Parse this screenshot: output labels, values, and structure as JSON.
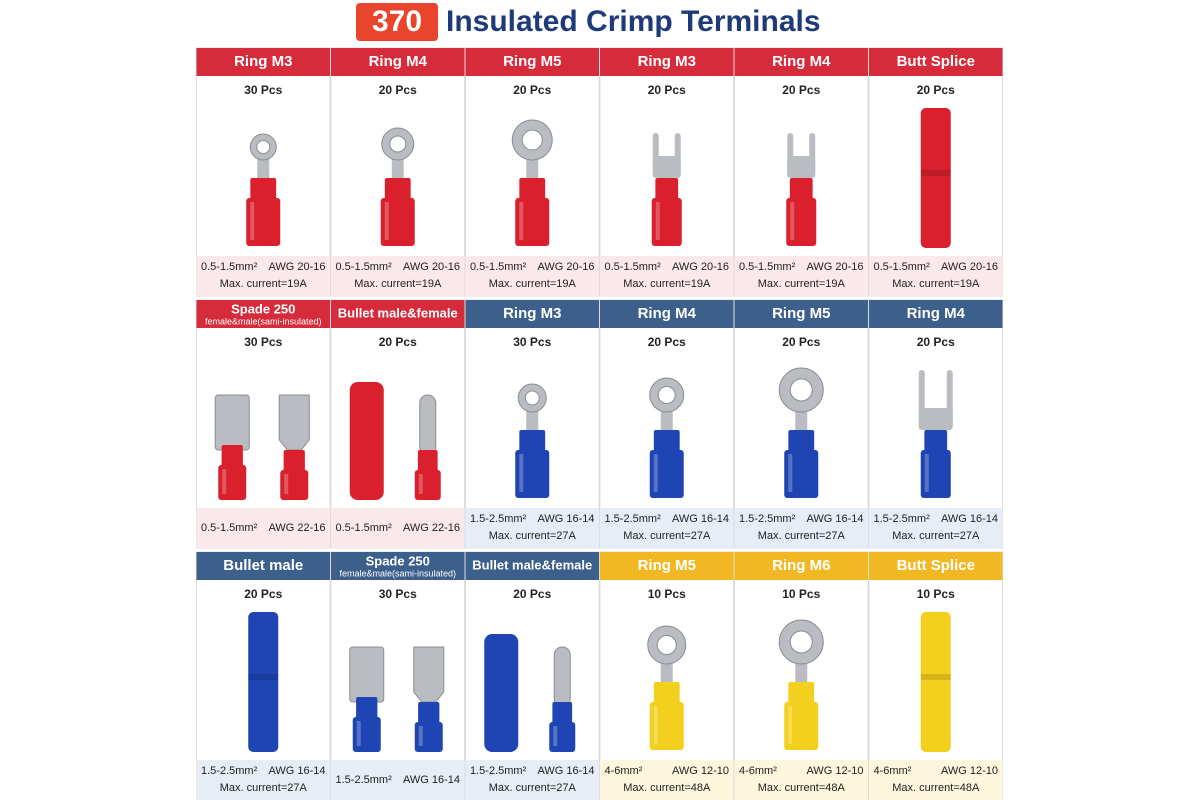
{
  "title": {
    "number": "370",
    "text": "Insulated Crimp Terminals"
  },
  "cells": [
    {
      "header": "Ring M3",
      "color": "#d62b3a",
      "count": "30 Pcs",
      "size": "0.5-1.5mm²",
      "awg": "AWG 20-16",
      "current": "Max. current=19A"
    },
    {
      "header": "Ring M4",
      "color": "#d62b3a",
      "count": "20 Pcs",
      "size": "0.5-1.5mm²",
      "awg": "AWG 20-16",
      "current": "Max. current=19A"
    },
    {
      "header": "Ring M5",
      "color": "#d62b3a",
      "count": "20 Pcs",
      "size": "0.5-1.5mm²",
      "awg": "AWG 20-16",
      "current": "Max. current=19A"
    },
    {
      "header": "Ring M3",
      "color": "#d62b3a",
      "count": "20 Pcs",
      "size": "0.5-1.5mm²",
      "awg": "AWG 20-16",
      "current": "Max. current=19A"
    },
    {
      "header": "Ring M4",
      "color": "#d62b3a",
      "count": "20 Pcs",
      "size": "0.5-1.5mm²",
      "awg": "AWG 20-16",
      "current": "Max. current=19A"
    },
    {
      "header": "Butt Splice",
      "color": "#d62b3a",
      "count": "20 Pcs",
      "size": "0.5-1.5mm²",
      "awg": "AWG 20-16",
      "current": "Max. current=19A"
    },
    {
      "header": "Spade 250",
      "subheader": "female&male(sami-insulated)",
      "color": "#d62b3a",
      "count": "30 Pcs",
      "size": "0.5-1.5mm²",
      "awg": "AWG 22-16"
    },
    {
      "header": "Bullet male&female",
      "color": "#d62b3a",
      "count": "20 Pcs",
      "size": "0.5-1.5mm²",
      "awg": "AWG 22-16"
    },
    {
      "header": "Ring M3",
      "color": "#3d5f8c",
      "count": "30 Pcs",
      "size": "1.5-2.5mm²",
      "awg": "AWG 16-14",
      "current": "Max. current=27A"
    },
    {
      "header": "Ring M4",
      "color": "#3d5f8c",
      "count": "20 Pcs",
      "size": "1.5-2.5mm²",
      "awg": "AWG 16-14",
      "current": "Max. current=27A"
    },
    {
      "header": "Ring M5",
      "color": "#3d5f8c",
      "count": "20 Pcs",
      "size": "1.5-2.5mm²",
      "awg": "AWG 16-14",
      "current": "Max. current=27A"
    },
    {
      "header": "Ring M4",
      "color": "#3d5f8c",
      "count": "20 Pcs",
      "size": "1.5-2.5mm²",
      "awg": "AWG 16-14",
      "current": "Max. current=27A"
    },
    {
      "header": "Bullet male",
      "color": "#3d5f8c",
      "count": "20 Pcs",
      "size": "1.5-2.5mm²",
      "awg": "AWG 16-14",
      "current": "Max. current=27A"
    },
    {
      "header": "Spade 250",
      "subheader": "female&male(sami-insulated)",
      "color": "#3d5f8c",
      "count": "30 Pcs",
      "size": "1.5-2.5mm²",
      "awg": "AWG 16-14"
    },
    {
      "header": "Bullet male&female",
      "color": "#3d5f8c",
      "count": "20 Pcs",
      "size": "1.5-2.5mm²",
      "awg": "AWG 16-14",
      "current": "Max. current=27A"
    },
    {
      "header": "Ring M5",
      "color": "#f2b824",
      "count": "10 Pcs",
      "size": "4-6mm²",
      "awg": "AWG 12-10",
      "current": "Max. current=48A"
    },
    {
      "header": "Ring M6",
      "color": "#f2b824",
      "count": "10 Pcs",
      "size": "4-6mm²",
      "awg": "AWG 12-10",
      "current": "Max. current=48A"
    },
    {
      "header": "Butt Splice",
      "color": "#f2b824",
      "count": "10 Pcs",
      "size": "4-6mm²",
      "awg": "AWG 12-10",
      "current": "Max. current=48A"
    }
  ]
}
